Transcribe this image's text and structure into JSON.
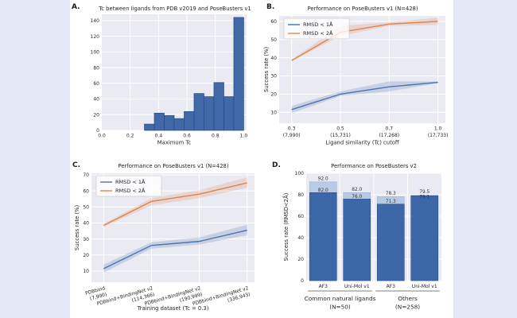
{
  "figure": {
    "background": "#e5e8f6",
    "card_background": "#ffffff",
    "axes_background": "#eaeaf2",
    "grid_color": "#ffffff",
    "text_color": "#262626"
  },
  "chart_data": [
    {
      "id": "A",
      "panel_label": "A.",
      "type": "bar",
      "title": "Tc between ligands from PDB v2019 and PoseBusters v1",
      "xlabel": "Maximum Tc",
      "ylabel": "",
      "bar_color": "#4169a8",
      "bar_edge_color": "#2b4a85",
      "bin_edges": [
        0.3,
        0.37,
        0.44,
        0.51,
        0.58,
        0.65,
        0.72,
        0.79,
        0.86,
        0.93,
        1.0
      ],
      "values": [
        8,
        22,
        19,
        15,
        24,
        47,
        43,
        61,
        43,
        144
      ],
      "xticks": [
        0.0,
        0.2,
        0.4,
        0.6,
        0.8,
        1.0
      ],
      "xtick_labels": [
        "0.0",
        "0.2",
        "0.4",
        "0.6",
        "0.8",
        "1.0"
      ],
      "yticks": [
        0,
        20,
        40,
        60,
        80,
        100,
        120,
        140
      ],
      "xlim": [
        0.0,
        1.02
      ],
      "ylim": [
        0,
        148
      ],
      "grid": true
    },
    {
      "id": "B",
      "panel_label": "B.",
      "type": "line",
      "title": "Performance on PoseBusters v1 (N=428)",
      "xlabel": "Ligand similarity (Tc) cutoff",
      "ylabel": "Success rate (%)",
      "xtick_labels": [
        [
          "0.3",
          "(7,990)"
        ],
        [
          "0.5",
          "(15,731)"
        ],
        [
          "0.7",
          "(17,268)"
        ],
        [
          "1.0",
          "(17,733)"
        ]
      ],
      "yticks": [
        10,
        20,
        30,
        40,
        50,
        60
      ],
      "ylim": [
        4,
        63
      ],
      "grid": true,
      "legend_position": "upper left",
      "legend": [
        "RMSD < 1Å",
        "RMSD < 2Å"
      ],
      "series": [
        {
          "name": "RMSD < 1Å",
          "color": "#4c72b0",
          "values": [
            11.5,
            20,
            24,
            26.5
          ],
          "band_low": [
            9.5,
            19,
            21.5,
            26
          ],
          "band_high": [
            13.5,
            21.5,
            27,
            27
          ]
        },
        {
          "name": "RMSD < 2Å",
          "color": "#dd8452",
          "values": [
            38.5,
            54,
            58.5,
            60
          ],
          "band_low": [
            38,
            52,
            57.5,
            58
          ],
          "band_high": [
            39,
            57.5,
            59.5,
            62
          ]
        }
      ]
    },
    {
      "id": "C",
      "panel_label": "C.",
      "type": "line",
      "title": "Performance on PoseBusters v1 (N=428)",
      "xlabel": "Training dataset (Tc = 0.3)",
      "ylabel": "Success rate (%)",
      "xtick_labels": [
        [
          "PDBbind",
          "(7,990)"
        ],
        [
          "PDBbind+BindingNet v2",
          "(114,366)"
        ],
        [
          "PDBbind+BindingNet v2",
          "(190,999)"
        ],
        [
          "PDBbind+BindingNet v2",
          "(336,943)"
        ]
      ],
      "xtick_rotation": -16,
      "yticks": [
        10,
        20,
        30,
        40,
        50,
        60,
        70
      ],
      "ylim": [
        3,
        71
      ],
      "grid": true,
      "legend_position": "upper left",
      "legend": [
        "RMSD < 1Å",
        "RMSD < 2Å"
      ],
      "series": [
        {
          "name": "RMSD < 1Å",
          "color": "#4c72b0",
          "values": [
            11.5,
            26,
            28.5,
            35.5
          ],
          "band_low": [
            9,
            24,
            26.5,
            32.5
          ],
          "band_high": [
            14,
            28,
            31,
            39
          ]
        },
        {
          "name": "RMSD < 2Å",
          "color": "#dd8452",
          "values": [
            38.5,
            53.5,
            58,
            65
          ],
          "band_low": [
            37.5,
            51,
            55.5,
            62
          ],
          "band_high": [
            39.5,
            55.5,
            60.5,
            68.5
          ]
        }
      ]
    },
    {
      "id": "D",
      "panel_label": "D.",
      "type": "layered-bar",
      "title": "Performance on PoseBusters v2",
      "xlabel": "",
      "ylabel": "Success rate (RMSD<2Å)",
      "categories": [
        "AF3",
        "Uni-Mol v1",
        "AF3",
        "Uni-Mol v1"
      ],
      "series": [
        {
          "name": "total",
          "color": "#b9cbe3",
          "edge": "#9db3d2",
          "values": [
            92.0,
            82.0,
            78.3,
            79.5
          ]
        },
        {
          "name": "subset",
          "color": "#3d68a8",
          "edge": "#2b4a85",
          "values": [
            82.0,
            76.0,
            71.3,
            79.1
          ]
        }
      ],
      "groups": [
        {
          "label": "Common natural ligands",
          "sub": "(N=50)"
        },
        {
          "label": "Others",
          "sub": "(N=258)"
        }
      ],
      "yticks": [
        0,
        20,
        40,
        60,
        80,
        100
      ],
      "ylim": [
        0,
        100
      ],
      "grid": true
    }
  ]
}
